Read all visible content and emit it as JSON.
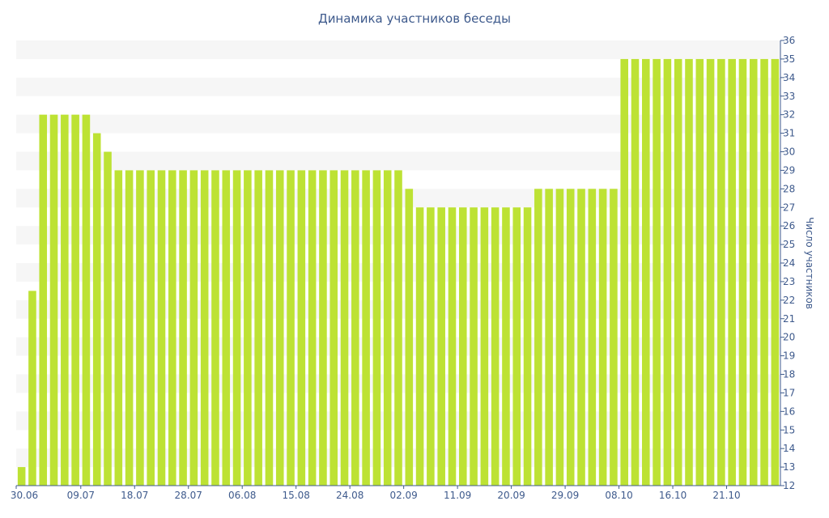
{
  "chart_data": {
    "type": "bar",
    "title": "Динамика участников беседы",
    "ylabel": "Число участников",
    "xlabel": "",
    "ylim": [
      12,
      36
    ],
    "y_ticks": [
      12,
      13,
      14,
      15,
      16,
      17,
      18,
      19,
      20,
      21,
      22,
      23,
      24,
      25,
      26,
      27,
      28,
      29,
      30,
      31,
      32,
      33,
      34,
      35,
      36
    ],
    "y_axis_side": "right",
    "grid": "alternating horizontal bands",
    "bar_color": "#bde234",
    "band_color": "#f6f6f6",
    "text_color": "#3e5a8c",
    "x_ticks": [
      {
        "label": "30.06",
        "index": 0
      },
      {
        "label": "09.07",
        "index": 5.5
      },
      {
        "label": "18.07",
        "index": 10.5
      },
      {
        "label": "28.07",
        "index": 15.5
      },
      {
        "label": "06.08",
        "index": 20.5
      },
      {
        "label": "15.08",
        "index": 25.5
      },
      {
        "label": "24.08",
        "index": 30.5
      },
      {
        "label": "02.09",
        "index": 35.5
      },
      {
        "label": "11.09",
        "index": 40.5
      },
      {
        "label": "20.09",
        "index": 45.5
      },
      {
        "label": "29.09",
        "index": 50.5
      },
      {
        "label": "08.10",
        "index": 55.5
      },
      {
        "label": "16.10",
        "index": 60.5
      },
      {
        "label": "21.10",
        "index": 65.5
      }
    ],
    "values": [
      13,
      22.5,
      32,
      32,
      32,
      32,
      32,
      31,
      30,
      29,
      29,
      29,
      29,
      29,
      29,
      29,
      29,
      29,
      29,
      29,
      29,
      29,
      29,
      29,
      29,
      29,
      29,
      29,
      29,
      29,
      29,
      29,
      29,
      29,
      29,
      29,
      28,
      27,
      27,
      27,
      27,
      27,
      27,
      27,
      27,
      27,
      27,
      27,
      28,
      28,
      28,
      28,
      28,
      28,
      28,
      28,
      35,
      35,
      35,
      35,
      35,
      35,
      35,
      35,
      35,
      35,
      35,
      35,
      35,
      35,
      35
    ]
  }
}
